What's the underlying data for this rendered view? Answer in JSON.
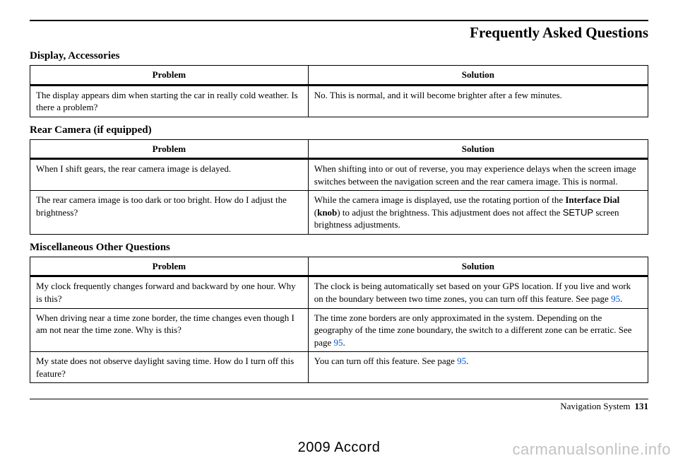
{
  "page": {
    "title": "Frequently Asked Questions",
    "footer_label": "Navigation System",
    "footer_page": "131",
    "model_year": "2009  Accord",
    "watermark": "carmanualsonline.info"
  },
  "sections": {
    "display": {
      "heading": "Display, Accessories",
      "headers": {
        "problem": "Problem",
        "solution": "Solution"
      },
      "rows": [
        {
          "problem": "The display appears dim when starting the car in really cold weather. Is there a problem?",
          "solution": "No. This is normal, and it will become brighter after a few minutes."
        }
      ]
    },
    "rear_camera": {
      "heading": "Rear Camera (if equipped)",
      "headers": {
        "problem": "Problem",
        "solution": "Solution"
      },
      "rows": [
        {
          "problem": "When I shift gears, the rear camera image is delayed.",
          "solution": "When shifting into or out of reverse, you may experience delays when the screen image switches between the navigation screen and the rear camera image. This is normal."
        },
        {
          "problem": "The rear camera image is too dark or too bright. How do I adjust the brightness?",
          "solution_pre": "While the camera image is displayed, use the rotating portion of the ",
          "solution_bold1": "Interface Dial",
          "solution_mid1": " (",
          "solution_bold2": "knob",
          "solution_mid2": ") to adjust the brightness. This adjustment does not affect the ",
          "solution_sans": "SETUP",
          "solution_post": " screen brightness adjustments."
        }
      ]
    },
    "misc": {
      "heading": "Miscellaneous Other Questions",
      "headers": {
        "problem": "Problem",
        "solution": "Solution"
      },
      "rows": [
        {
          "problem": "My clock frequently changes forward and backward by one hour. Why is this?",
          "solution_pre": "The clock is being automatically set based on your GPS location. If you live and work on the boundary between two time zones, you can turn off this feature. See page ",
          "page_ref": "95",
          "solution_post": "."
        },
        {
          "problem": "When driving near a time zone border, the time changes even though I am not near the time zone. Why is this?",
          "solution_pre": "The time zone borders are only approximated in the system. Depending on the geography of the time zone boundary, the switch to a different zone can be erratic. See page ",
          "page_ref": "95",
          "solution_post": "."
        },
        {
          "problem": "My state does not observe daylight saving time. How do I turn off this feature?",
          "solution_pre": "You can turn off this feature. See page ",
          "page_ref": "95",
          "solution_post": "."
        }
      ]
    }
  }
}
